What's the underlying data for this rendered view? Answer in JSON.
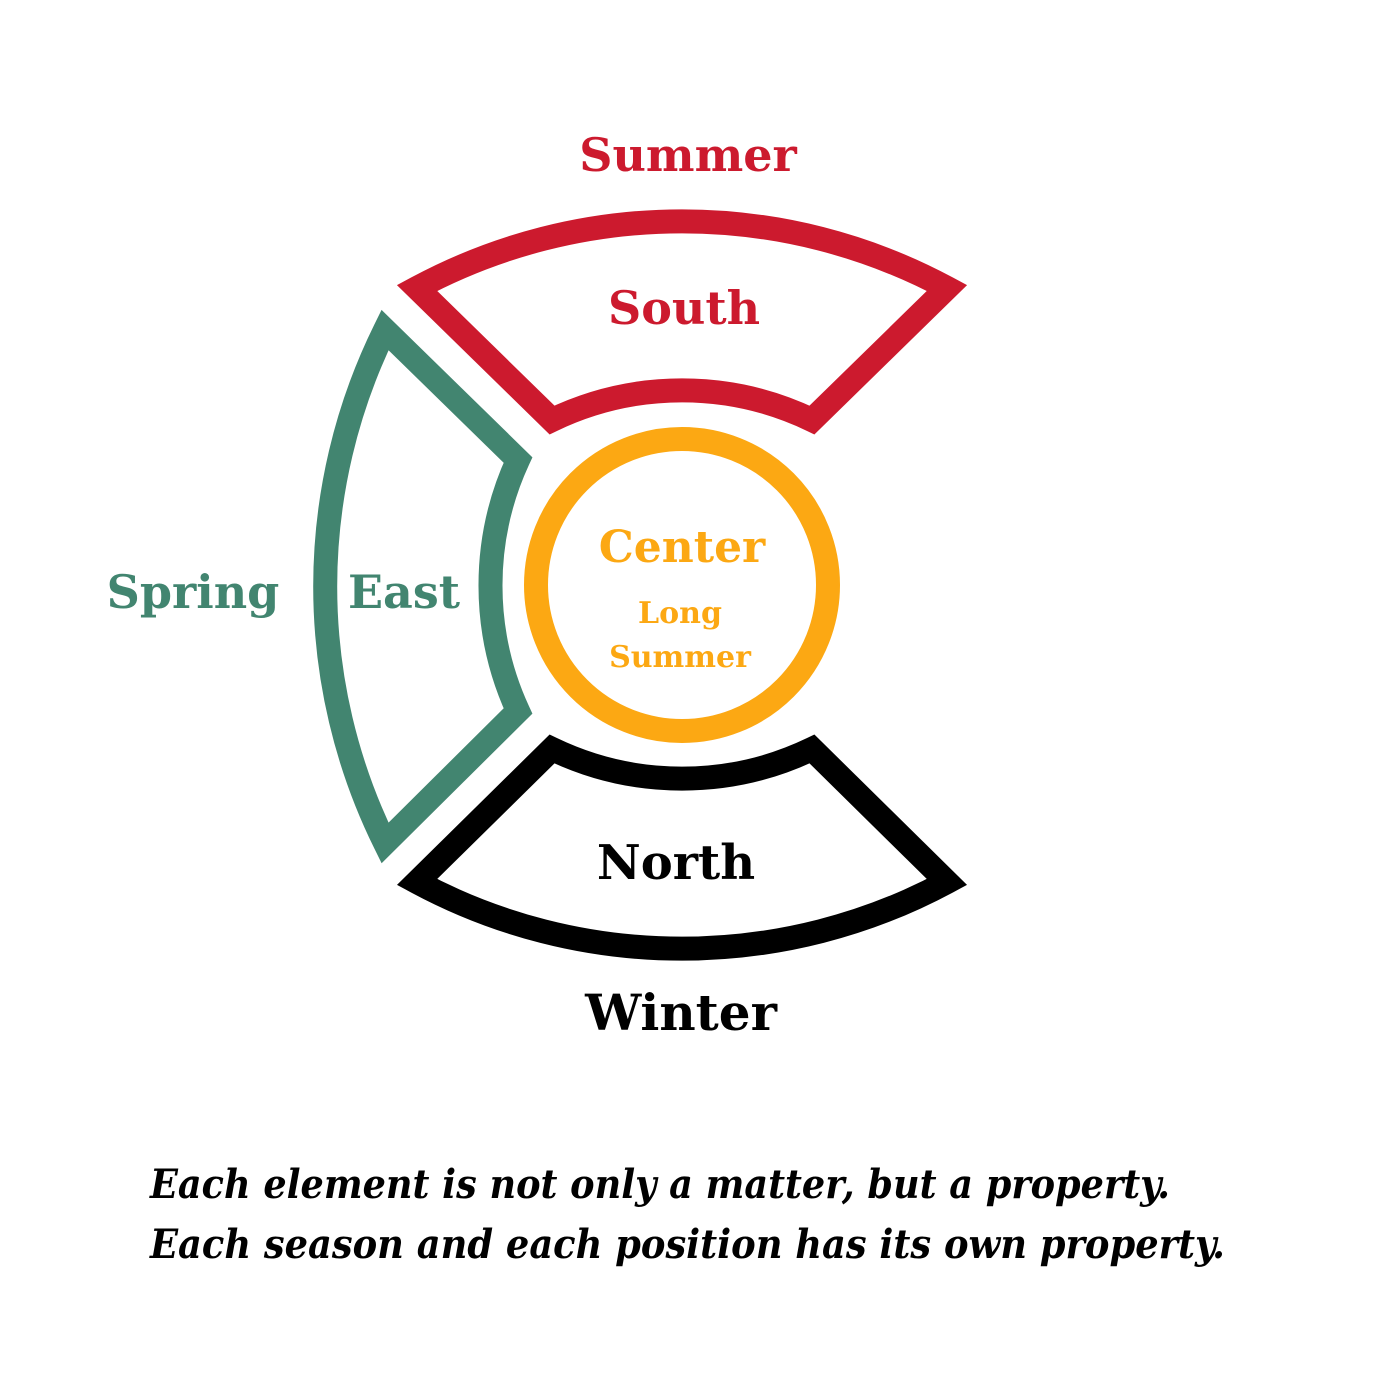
{
  "colors": {
    "south": "#cc1a2e",
    "east": "#428570",
    "center": "#fca813",
    "north": "#000000",
    "caption": "#000000",
    "background": "#ffffff"
  },
  "segments": {
    "south": {
      "position": "South",
      "season": "Summer"
    },
    "east": {
      "position": "East",
      "season": "Spring"
    },
    "center": {
      "position": "Center",
      "season_line1": "Long",
      "season_line2": "Summer"
    },
    "north": {
      "position": "North",
      "season": "Winter"
    }
  },
  "caption": {
    "line1": "Each element is not only a matter, but a property.",
    "line2": "Each season and each position has its own property."
  }
}
